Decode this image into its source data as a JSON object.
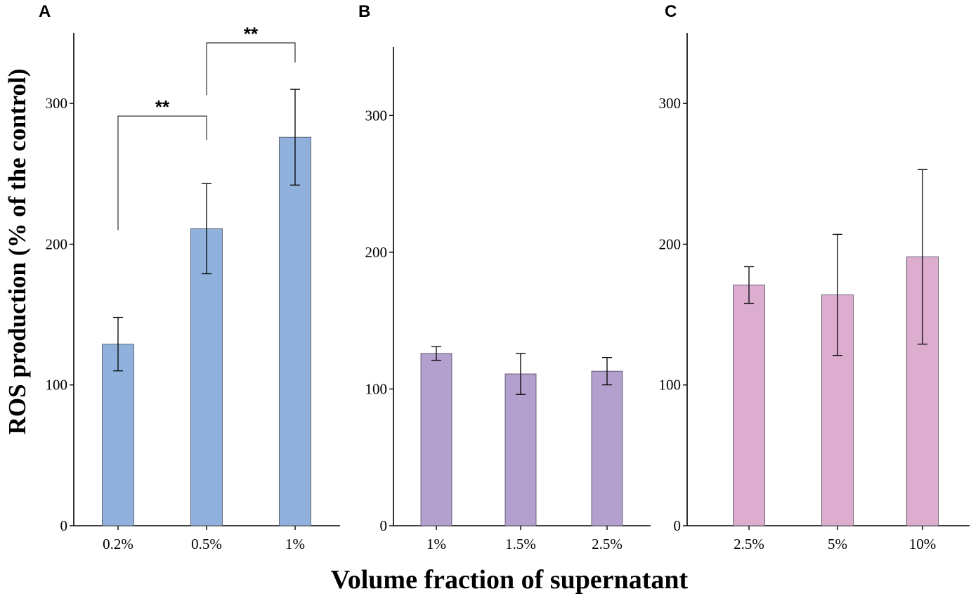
{
  "figure": {
    "ylabel": "ROS production (% of the control)",
    "xlabel": "Volume fraction of supernatant"
  },
  "chart_data": [
    {
      "panel": "A",
      "type": "bar",
      "categories": [
        "0.2%",
        "0.5%",
        "1%"
      ],
      "values": [
        129,
        211,
        276
      ],
      "errors": [
        19,
        32,
        34
      ],
      "ylim": [
        0,
        350
      ],
      "yticks": [
        0,
        100,
        200,
        300
      ],
      "bar_color": "#8fb1db",
      "significance": [
        {
          "from": 0,
          "to": 1,
          "label": "**",
          "y_bracket": 291,
          "y_from_end": 210,
          "y_to_end": 274
        },
        {
          "from": 1,
          "to": 2,
          "label": "**",
          "y_bracket": 343,
          "y_from_end": 306,
          "y_to_end": 329
        }
      ]
    },
    {
      "panel": "B",
      "type": "bar",
      "categories": [
        "1%",
        "1.5%",
        "2.5%"
      ],
      "values": [
        126,
        111,
        113
      ],
      "errors": [
        5,
        15,
        10
      ],
      "ylim": [
        0,
        350
      ],
      "yticks": [
        0,
        100,
        200,
        300
      ],
      "bar_color": "#b3a0ce",
      "significance": []
    },
    {
      "panel": "C",
      "type": "bar",
      "categories": [
        "2.5%",
        "5%",
        "10%"
      ],
      "values": [
        171,
        164,
        191
      ],
      "errors": [
        13,
        43,
        62
      ],
      "ylim": [
        0,
        350
      ],
      "yticks": [
        0,
        100,
        200,
        300
      ],
      "bar_color": "#ddadd0",
      "significance": []
    }
  ]
}
